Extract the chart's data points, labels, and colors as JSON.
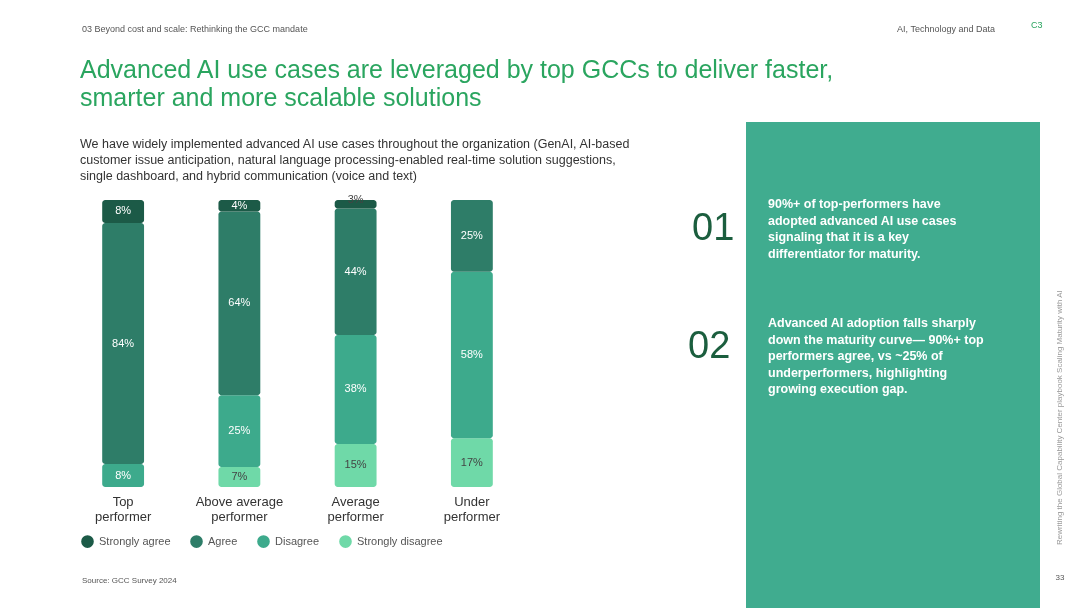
{
  "chart_data": {
    "type": "bar",
    "stacked": true,
    "title": "Advanced AI use cases are leveraged by top GCCs to deliver faster, smarter and more scalable solutions",
    "subtitle": "We have widely implemented advanced AI use cases throughout the organization (GenAI, AI-based customer issue anticipation, natural language processing-enabled real-time solution suggestions, single dashboard, and hybrid communication (voice and text)",
    "categories": [
      "Top performer",
      "Above average performer",
      "Average performer",
      "Under performer"
    ],
    "series": [
      {
        "name": "Strongly disagree",
        "color": "#6fd9a8",
        "values": [
          null,
          7,
          15,
          17
        ],
        "value_labels": [
          null,
          "7%",
          "15%",
          "17%"
        ]
      },
      {
        "name": "Disagree",
        "color": "#3daa8c",
        "values": [
          8,
          25,
          38,
          58
        ],
        "value_labels": [
          "8%",
          "25%",
          "38%",
          "58%"
        ]
      },
      {
        "name": "Agree",
        "color": "#2e7d68",
        "values": [
          84,
          64,
          44,
          25
        ],
        "value_labels": [
          "84%",
          "64%",
          "44%",
          "25%"
        ]
      },
      {
        "name": "Strongly agree",
        "color": "#1c5a47",
        "values": [
          8,
          4,
          3,
          null
        ],
        "value_labels": [
          "8%",
          "4%",
          "3%",
          null
        ]
      }
    ],
    "ylim": [
      0,
      100
    ],
    "tick_labels": "x",
    "legend": "bottom",
    "annotations": [
      "03 Beyond cost and scale: Rethinking the GCC mandate",
      "AI, Technology and Data",
      "C3",
      "01",
      "90%+ of top-performers have adopted advanced AI use cases signaling that it is a key differentiator for maturity.",
      "02",
      "Advanced AI adoption falls sharply down the maturity curve— 90%+ top performers agree, vs ~25% of underperformers, highlighting growing execution gap.",
      "Source: GCC Survey 2024",
      "Rewriting the Global Capability Center playbook Scaling Maturity with AI",
      "33"
    ]
  }
}
